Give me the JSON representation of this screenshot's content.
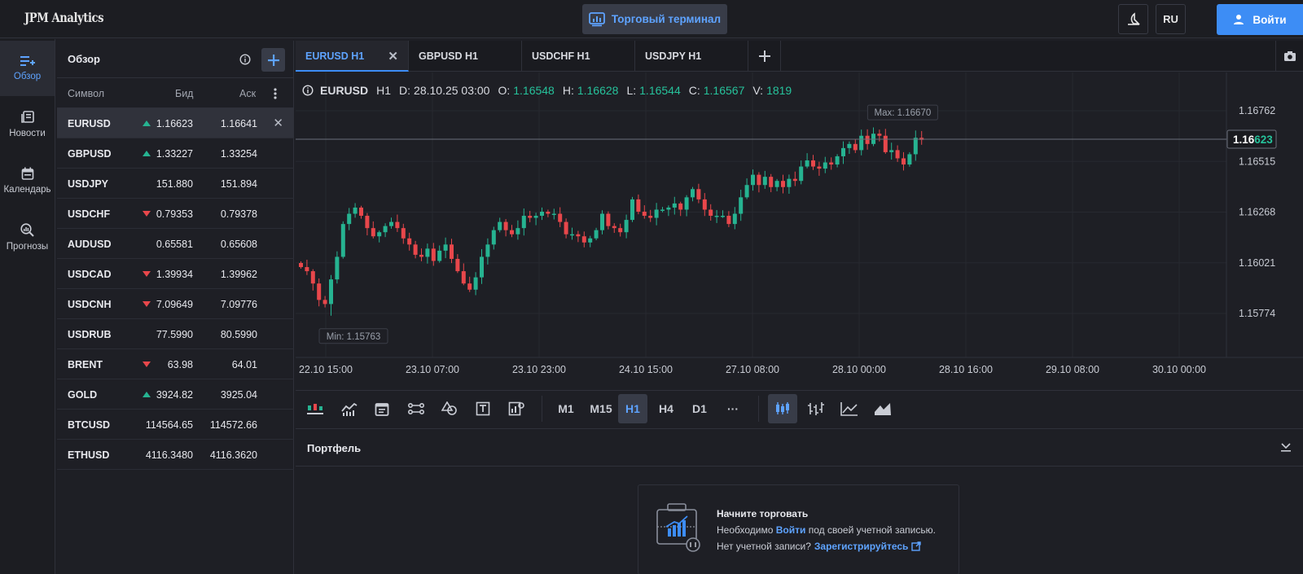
{
  "header": {
    "logo": "JPM Analytics",
    "terminal_button": "Торговый терминал",
    "lang": "RU",
    "login": "Войти"
  },
  "rail": [
    {
      "label": "Обзор",
      "icon": "overview-icon",
      "active": true
    },
    {
      "label": "Новости",
      "icon": "news-icon",
      "active": false
    },
    {
      "label": "Календарь",
      "icon": "calendar-icon",
      "active": false
    },
    {
      "label": "Прогнозы",
      "icon": "forecast-icon",
      "active": false
    }
  ],
  "watchlist": {
    "title": "Обзор",
    "columns": {
      "symbol": "Символ",
      "bid": "Бид",
      "ask": "Аск"
    },
    "rows": [
      {
        "symbol": "EURUSD",
        "bid": "1.16623",
        "ask": "1.16641",
        "trend": "up"
      },
      {
        "symbol": "GBPUSD",
        "bid": "1.33227",
        "ask": "1.33254",
        "trend": "up"
      },
      {
        "symbol": "USDJPY",
        "bid": "151.880",
        "ask": "151.894",
        "trend": ""
      },
      {
        "symbol": "USDCHF",
        "bid": "0.79353",
        "ask": "0.79378",
        "trend": "down"
      },
      {
        "symbol": "AUDUSD",
        "bid": "0.65581",
        "ask": "0.65608",
        "trend": ""
      },
      {
        "symbol": "USDCAD",
        "bid": "1.39934",
        "ask": "1.39962",
        "trend": "down"
      },
      {
        "symbol": "USDCNH",
        "bid": "7.09649",
        "ask": "7.09776",
        "trend": "down"
      },
      {
        "symbol": "USDRUB",
        "bid": "77.5990",
        "ask": "80.5990",
        "trend": ""
      },
      {
        "symbol": "BRENT",
        "bid": "63.98",
        "ask": "64.01",
        "trend": "down"
      },
      {
        "symbol": "GOLD",
        "bid": "3924.82",
        "ask": "3925.04",
        "trend": "up"
      },
      {
        "symbol": "BTCUSD",
        "bid": "114564.65",
        "ask": "114572.66",
        "trend": ""
      },
      {
        "symbol": "ETHUSD",
        "bid": "4116.3480",
        "ask": "4116.3620",
        "trend": ""
      }
    ]
  },
  "tabs": [
    "EURUSD H1",
    "GBPUSD H1",
    "USDCHF H1",
    "USDJPY H1"
  ],
  "ohlc": {
    "symbol": "EURUSD",
    "tf": "H1",
    "d_label": "D:",
    "date": "28.10.25 03:00",
    "o_label": "O:",
    "o": "1.16548",
    "h_label": "H:",
    "h": "1.16628",
    "l_label": "L:",
    "l": "1.16544",
    "c_label": "C:",
    "c": "1.16567",
    "v_label": "V:",
    "v": "1819"
  },
  "chart_data": {
    "type": "candlestick",
    "y_ticks": [
      "1.16762",
      "1.16515",
      "1.16268",
      "1.16021",
      "1.15774"
    ],
    "x_ticks": [
      "22.10 15:00",
      "23.10 07:00",
      "23.10 23:00",
      "24.10 15:00",
      "27.10 08:00",
      "28.10 00:00",
      "28.10 16:00",
      "29.10 08:00",
      "30.10 00:00"
    ],
    "ylim": [
      1.1567,
      1.1685
    ],
    "current_price": 1.16623,
    "current_price_label": [
      "1.16",
      "623"
    ],
    "max_label": "Max: 1.16670",
    "min_label": "Min: 1.15763",
    "up_color": "#26b391",
    "down_color": "#e8474b",
    "closes": [
      1.16,
      1.1598,
      1.1592,
      1.1584,
      1.1582,
      1.1594,
      1.1605,
      1.1621,
      1.1626,
      1.1629,
      1.1625,
      1.1619,
      1.1615,
      1.1617,
      1.162,
      1.1622,
      1.1619,
      1.1614,
      1.1611,
      1.1606,
      1.1605,
      1.1609,
      1.1603,
      1.1608,
      1.1611,
      1.1604,
      1.1598,
      1.1592,
      1.1589,
      1.1595,
      1.1605,
      1.1611,
      1.1618,
      1.1622,
      1.1618,
      1.1616,
      1.1619,
      1.1625,
      1.1624,
      1.1625,
      1.1627,
      1.1626,
      1.1626,
      1.1622,
      1.1616,
      1.1616,
      1.1615,
      1.1612,
      1.1614,
      1.1618,
      1.1626,
      1.162,
      1.1619,
      1.1617,
      1.1623,
      1.1633,
      1.1627,
      1.1625,
      1.1624,
      1.1628,
      1.1628,
      1.1629,
      1.1631,
      1.1628,
      1.1634,
      1.1638,
      1.1633,
      1.1628,
      1.1625,
      1.1625,
      1.1625,
      1.1621,
      1.1626,
      1.1634,
      1.164,
      1.1645,
      1.164,
      1.1644,
      1.1639,
      1.1642,
      1.1639,
      1.1643,
      1.1642,
      1.1649,
      1.1652,
      1.1649,
      1.1648,
      1.1651,
      1.165,
      1.1654,
      1.1658,
      1.166,
      1.1657,
      1.1664,
      1.166,
      1.1665,
      1.1664,
      1.1656,
      1.1657,
      1.1653,
      1.165,
      1.1655,
      1.1663,
      1.1662
    ],
    "volume": "1819"
  },
  "toolbar": {
    "timeframes": [
      "M1",
      "M15",
      "H1",
      "H4",
      "D1",
      "···"
    ],
    "active_tf": "H1"
  },
  "portfolio": {
    "title": "Портфель",
    "empty_title": "Начните торговать",
    "line1_pre": "Необходимо",
    "line1_link": "Войти",
    "line1_post": "под своей учетной записью.",
    "line2_pre": "Нет учетной записи?",
    "line2_link": "Зарегистрируйтесь"
  }
}
